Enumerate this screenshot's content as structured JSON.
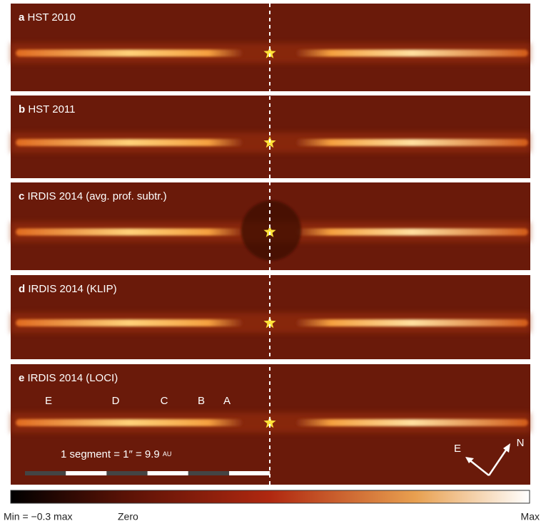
{
  "panels": [
    {
      "letter": "a",
      "title": "HST 2010"
    },
    {
      "letter": "b",
      "title": "HST 2011"
    },
    {
      "letter": "c",
      "title": "IRDIS 2014 (avg. prof. subtr.)"
    },
    {
      "letter": "d",
      "title": "IRDIS 2014 (KLIP)"
    },
    {
      "letter": "e",
      "title": "IRDIS 2014 (LOCI)"
    }
  ],
  "features": [
    "E",
    "D",
    "C",
    "B",
    "A"
  ],
  "scale_bar": {
    "text": "1 segment = 1″ = 9.9",
    "unit": "AU"
  },
  "compass": {
    "east": "E",
    "north": "N"
  },
  "colorbar": {
    "min": "Min = −0.3 max",
    "zero": "Zero",
    "max": "Max"
  }
}
